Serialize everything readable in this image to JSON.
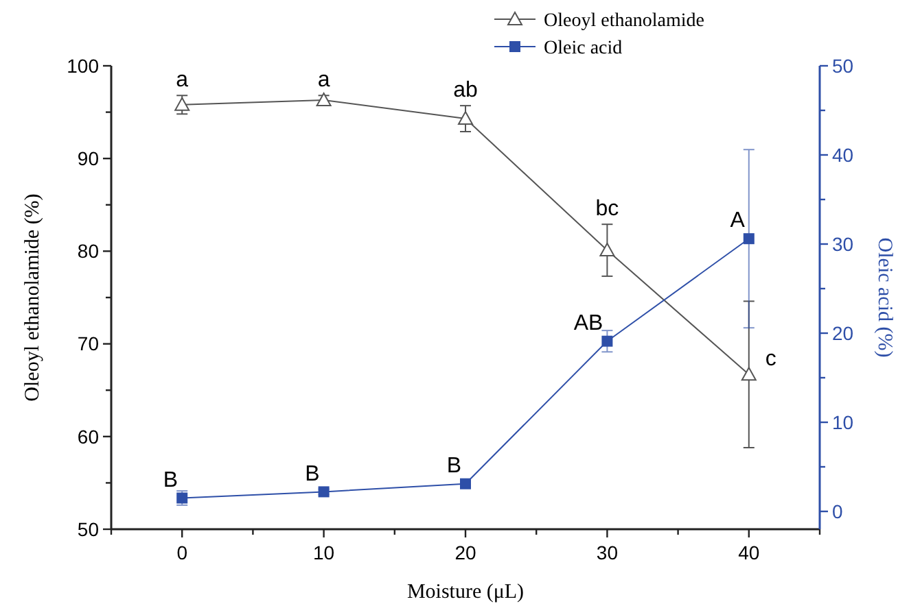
{
  "chart_data": {
    "type": "line",
    "xlabel": "Moisture (μL)",
    "ylabel": "Oleoyl ethanolamide (%)",
    "y2label": "Oleic acid (%)",
    "x": [
      0,
      10,
      20,
      30,
      40
    ],
    "xlim": [
      -5,
      45
    ],
    "xticks": [
      {
        "value": -5,
        "label": null
      },
      0,
      {
        "value": 5,
        "label": null
      },
      10,
      {
        "value": 15,
        "label": null
      },
      20,
      {
        "value": 25,
        "label": null
      },
      30,
      {
        "value": 35,
        "label": null
      },
      40,
      {
        "value": 45,
        "label": null
      }
    ],
    "ylim": [
      50,
      100
    ],
    "yticks": [
      50,
      {
        "value": 55,
        "label": null
      },
      60,
      {
        "value": 65,
        "label": null
      },
      70,
      {
        "value": 75,
        "label": null
      },
      80,
      {
        "value": 85,
        "label": null
      },
      90,
      {
        "value": 95,
        "label": null
      },
      100
    ],
    "y2lim": [
      -2,
      50
    ],
    "y2ticks": [
      0,
      {
        "value": 5,
        "label": null
      },
      10,
      {
        "value": 15,
        "label": null
      },
      20,
      {
        "value": 25,
        "label": null
      },
      30,
      {
        "value": 35,
        "label": null
      },
      40,
      {
        "value": 45,
        "label": null
      },
      50
    ],
    "series": [
      {
        "name": "Oleoyl ethanolamide",
        "color": "#555555",
        "marker": "triangle",
        "values": [
          95.8,
          96.3,
          94.3,
          80.1,
          66.7
        ],
        "errors": [
          1.0,
          0.5,
          1.4,
          2.8,
          7.9
        ]
      },
      {
        "name": "Oleic acid",
        "color": "#2e4fa8",
        "marker": "square",
        "axis": "y2",
        "values": [
          1.5,
          2.2,
          3.1,
          19.1,
          30.6
        ],
        "errors": [
          0.8,
          0.3,
          0.3,
          1.2,
          10
        ]
      }
    ],
    "annotations": [
      {
        "text": "a",
        "x": 0,
        "y": 95.8
      },
      {
        "text": "a",
        "x": 10,
        "y": 96.3
      },
      {
        "text": "ab",
        "x": 20,
        "y": 94.3
      },
      {
        "text": "bc",
        "x": 30,
        "y": 80.1
      },
      {
        "text": "c",
        "x": 40,
        "y": 66.7
      },
      {
        "text": "B",
        "x": 0,
        "y": 53.37
      },
      {
        "text": "B",
        "x": 10,
        "y": 54.04
      },
      {
        "text": "B",
        "x": 20,
        "y": 54.9
      },
      {
        "text": "AB",
        "x": 30,
        "y": 70.29
      },
      {
        "text": "A",
        "x": 40,
        "y": 81.35
      }
    ],
    "legend": "top right",
    "grid": false
  }
}
